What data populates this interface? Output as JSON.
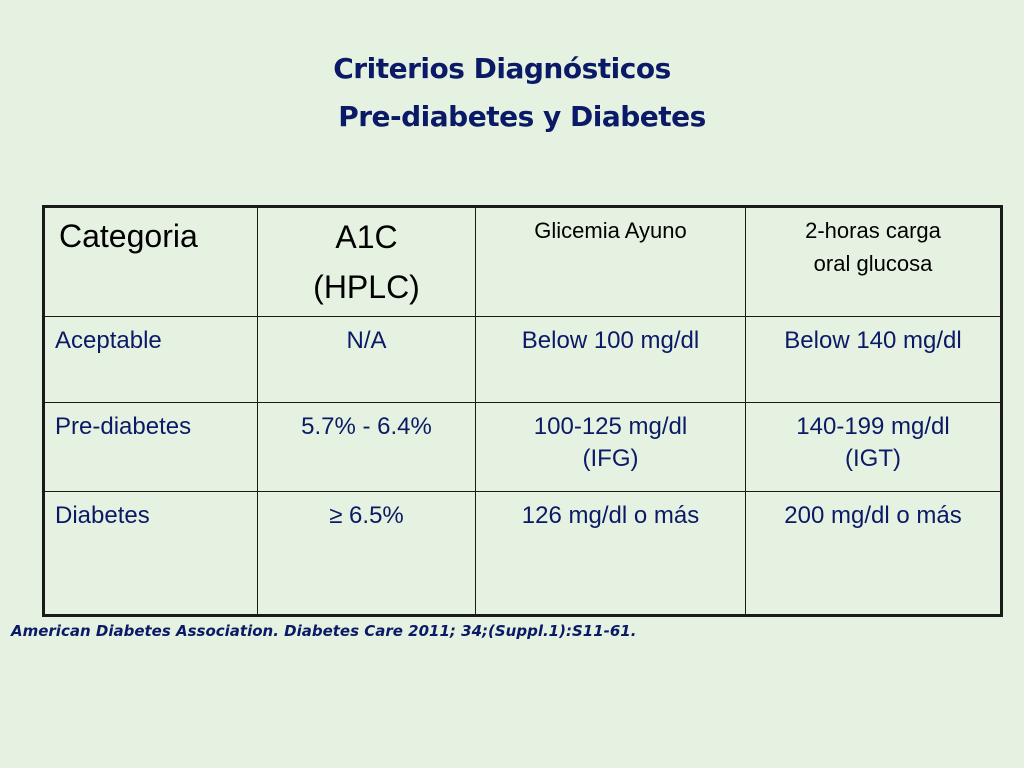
{
  "title": {
    "line1": "Criterios Diagnósticos",
    "line2": "Pre-diabetes y Diabetes"
  },
  "table": {
    "headers": {
      "categoria": "Categoria",
      "a1c_line1": "A1C",
      "a1c_line2": "(HPLC)",
      "glicemia": "Glicemia Ayuno",
      "carga_line1": "2-horas carga",
      "carga_line2": "oral glucosa"
    },
    "rows": [
      {
        "label": "Aceptable",
        "a1c": "N/A",
        "glicemia_line1": "Below 100 mg/dl",
        "glicemia_line2": "",
        "carga_line1": "Below 140 mg/dl",
        "carga_line2": ""
      },
      {
        "label": "Pre-diabetes",
        "a1c": "5.7% - 6.4%",
        "glicemia_line1": "100-125 mg/dl",
        "glicemia_line2": "(IFG)",
        "carga_line1": "140-199 mg/dl",
        "carga_line2": "(IGT)"
      },
      {
        "label": "Diabetes",
        "a1c": "≥ 6.5%",
        "glicemia_line1": "126 mg/dl o más",
        "glicemia_line2": "",
        "carga_line1": "200 mg/dl o más",
        "carga_line2": ""
      }
    ]
  },
  "citation": "American Diabetes Association. Diabetes Care 2011; 34;(Suppl.1):S11-61.",
  "colors": {
    "background": "#e6f2e1",
    "text_navy": "#0b1a66",
    "header_text": "#000000",
    "border": "#1a1a1a"
  }
}
